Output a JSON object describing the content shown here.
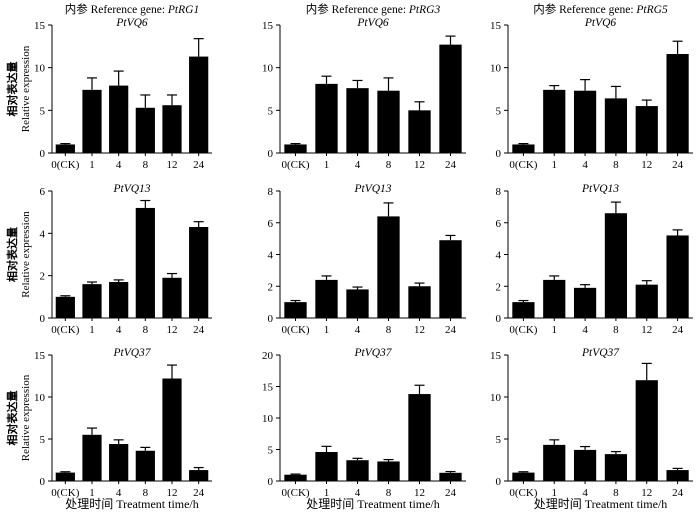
{
  "figure": {
    "column_headers": [
      "内参 Reference gene: PtRG1",
      "内参 Reference gene: PtRG3",
      "内参 Reference gene: PtRG5"
    ],
    "column_header_parts": [
      {
        "prefix": "内参 Reference gene: ",
        "gene": "PtRG1"
      },
      {
        "prefix": "内参 Reference gene: ",
        "gene": "PtRG3"
      },
      {
        "prefix": "内参 Reference gene: ",
        "gene": "PtRG5"
      }
    ],
    "ylabel_cn": "相对表达量",
    "ylabel_en": "Relative expression",
    "xlabel": "处理时间 Treatment time/h",
    "colors": {
      "bar": "#000000",
      "axis": "#000000",
      "background": "#ffffff"
    }
  },
  "chart_data": [
    {
      "type": "bar",
      "title": "PtVQ6",
      "reference_gene": "PtRG1",
      "categories": [
        "0(CK)",
        "1",
        "4",
        "8",
        "12",
        "24"
      ],
      "values": [
        1.0,
        7.4,
        7.9,
        5.3,
        5.6,
        11.3
      ],
      "errors": [
        0.1,
        1.4,
        1.7,
        1.5,
        1.2,
        2.1
      ],
      "ylim": [
        0,
        15
      ],
      "yticks": [
        0,
        5,
        10,
        15
      ],
      "xlabel": "",
      "ylabel": "相对表达量 Relative expression"
    },
    {
      "type": "bar",
      "title": "PtVQ6",
      "reference_gene": "PtRG3",
      "categories": [
        "0(CK)",
        "1",
        "4",
        "8",
        "12",
        "24"
      ],
      "values": [
        1.0,
        8.1,
        7.6,
        7.3,
        5.0,
        12.7
      ],
      "errors": [
        0.1,
        0.9,
        0.9,
        1.5,
        1.0,
        1.0
      ],
      "ylim": [
        0,
        15
      ],
      "yticks": [
        0,
        5,
        10,
        15
      ],
      "xlabel": "",
      "ylabel": ""
    },
    {
      "type": "bar",
      "title": "PtVQ6",
      "reference_gene": "PtRG5",
      "categories": [
        "0(CK)",
        "1",
        "4",
        "8",
        "12",
        "24"
      ],
      "values": [
        1.0,
        7.4,
        7.3,
        6.4,
        5.5,
        11.6
      ],
      "errors": [
        0.1,
        0.5,
        1.3,
        1.4,
        0.7,
        1.5
      ],
      "ylim": [
        0,
        15
      ],
      "yticks": [
        0,
        5,
        10,
        15
      ],
      "xlabel": "",
      "ylabel": ""
    },
    {
      "type": "bar",
      "title": "PtVQ13",
      "reference_gene": "PtRG1",
      "categories": [
        "0(CK)",
        "1",
        "4",
        "8",
        "12",
        "24"
      ],
      "values": [
        1.0,
        1.6,
        1.7,
        5.2,
        1.9,
        4.3
      ],
      "errors": [
        0.05,
        0.1,
        0.1,
        0.35,
        0.2,
        0.25
      ],
      "ylim": [
        0,
        6
      ],
      "yticks": [
        0,
        2,
        4,
        6
      ],
      "xlabel": "",
      "ylabel": "相对表达量 Relative expression"
    },
    {
      "type": "bar",
      "title": "PtVQ13",
      "reference_gene": "PtRG3",
      "categories": [
        "0(CK)",
        "1",
        "4",
        "8",
        "12",
        "24"
      ],
      "values": [
        1.0,
        2.4,
        1.8,
        6.4,
        2.0,
        4.9
      ],
      "errors": [
        0.1,
        0.25,
        0.15,
        0.85,
        0.2,
        0.3
      ],
      "ylim": [
        0,
        8
      ],
      "yticks": [
        0,
        2,
        4,
        6,
        8
      ],
      "xlabel": "",
      "ylabel": ""
    },
    {
      "type": "bar",
      "title": "PtVQ13",
      "reference_gene": "PtRG5",
      "categories": [
        "0(CK)",
        "1",
        "4",
        "8",
        "12",
        "24"
      ],
      "values": [
        1.0,
        2.4,
        1.9,
        6.6,
        2.1,
        5.2
      ],
      "errors": [
        0.1,
        0.25,
        0.2,
        0.7,
        0.25,
        0.35
      ],
      "ylim": [
        0,
        8
      ],
      "yticks": [
        0,
        2,
        4,
        6,
        8
      ],
      "xlabel": "",
      "ylabel": ""
    },
    {
      "type": "bar",
      "title": "PtVQ37",
      "reference_gene": "PtRG1",
      "categories": [
        "0(CK)",
        "1",
        "4",
        "8",
        "12",
        "24"
      ],
      "values": [
        1.0,
        5.5,
        4.4,
        3.6,
        12.2,
        1.3
      ],
      "errors": [
        0.1,
        0.8,
        0.5,
        0.4,
        1.6,
        0.3
      ],
      "ylim": [
        0,
        15
      ],
      "yticks": [
        0,
        5,
        10,
        15
      ],
      "xlabel": "处理时间 Treatment time/h",
      "ylabel": "相对表达量 Relative expression"
    },
    {
      "type": "bar",
      "title": "PtVQ37",
      "reference_gene": "PtRG3",
      "categories": [
        "0(CK)",
        "1",
        "4",
        "8",
        "12",
        "24"
      ],
      "values": [
        1.0,
        4.6,
        3.3,
        3.1,
        13.8,
        1.3
      ],
      "errors": [
        0.1,
        0.9,
        0.3,
        0.3,
        1.4,
        0.2
      ],
      "ylim": [
        0,
        20
      ],
      "yticks": [
        0,
        5,
        10,
        15,
        20
      ],
      "xlabel": "处理时间 Treatment time/h",
      "ylabel": ""
    },
    {
      "type": "bar",
      "title": "PtVQ37",
      "reference_gene": "PtRG5",
      "categories": [
        "0(CK)",
        "1",
        "4",
        "8",
        "12",
        "24"
      ],
      "values": [
        1.0,
        4.3,
        3.7,
        3.2,
        12.0,
        1.3
      ],
      "errors": [
        0.1,
        0.6,
        0.4,
        0.3,
        2.0,
        0.2
      ],
      "ylim": [
        0,
        15
      ],
      "yticks": [
        0,
        5,
        10,
        15
      ],
      "xlabel": "处理时间 Treatment time/h",
      "ylabel": ""
    }
  ]
}
